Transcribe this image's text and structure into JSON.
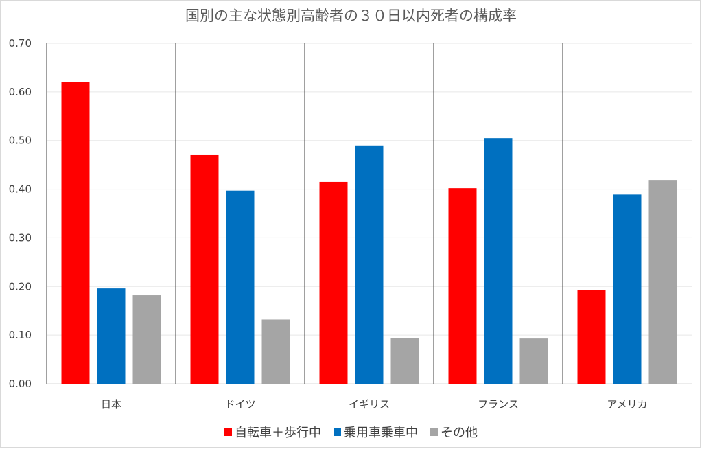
{
  "chart_data": {
    "type": "bar",
    "title": "国別の主な状態別高齢者の３０日以内死者の構成率",
    "categories": [
      "日本",
      "ドイツ",
      "イギリス",
      "フランス",
      "アメリカ"
    ],
    "series": [
      {
        "name": "自転車＋歩行中",
        "color": "#ff0000",
        "values": [
          0.62,
          0.47,
          0.415,
          0.402,
          0.192
        ]
      },
      {
        "name": "乗用車乗車中",
        "color": "#0070c0",
        "values": [
          0.196,
          0.397,
          0.49,
          0.505,
          0.389
        ]
      },
      {
        "name": "その他",
        "color": "#a5a5a5",
        "values": [
          0.182,
          0.132,
          0.094,
          0.093,
          0.419
        ]
      }
    ],
    "ylim": [
      0,
      0.7
    ],
    "yticks": [
      "0.00",
      "0.10",
      "0.20",
      "0.30",
      "0.40",
      "0.50",
      "0.60",
      "0.70"
    ],
    "grid": true,
    "legend_position": "bottom"
  }
}
